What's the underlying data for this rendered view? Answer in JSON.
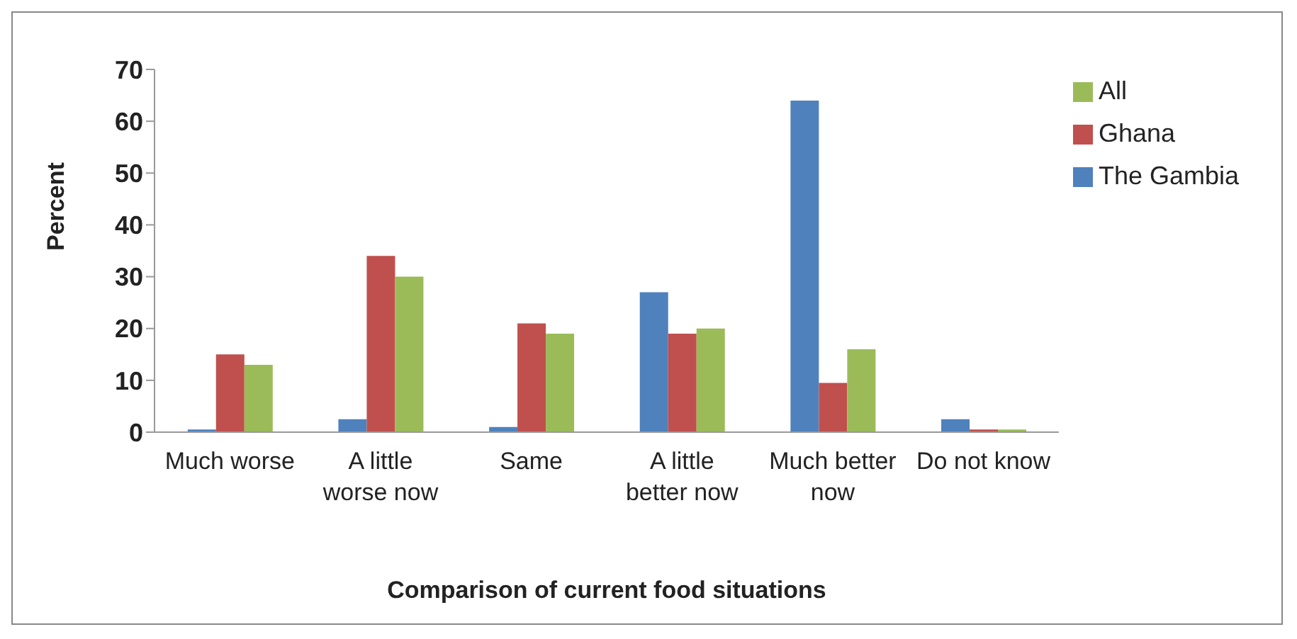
{
  "chart_data": {
    "type": "bar",
    "xlabel": "Comparison of current food situations",
    "ylabel": "Percent",
    "categories": [
      "Much worse",
      "A little worse now",
      "Same",
      "A little better now",
      "Much better now",
      "Do not know"
    ],
    "series": [
      {
        "name": "The Gambia",
        "color": "#4f81bd",
        "values": [
          0.5,
          2.5,
          1,
          27,
          64,
          2.5
        ]
      },
      {
        "name": "Ghana",
        "color": "#c0504d",
        "values": [
          15,
          34,
          21,
          19,
          9.5,
          0.5
        ]
      },
      {
        "name": "All",
        "color": "#9bbb59",
        "values": [
          13,
          30,
          19,
          20,
          16,
          0.5
        ]
      }
    ],
    "ylim": [
      0,
      70
    ],
    "yticks": [
      0,
      10,
      20,
      30,
      40,
      50,
      60,
      70
    ],
    "grid": false,
    "legend": "top right"
  }
}
